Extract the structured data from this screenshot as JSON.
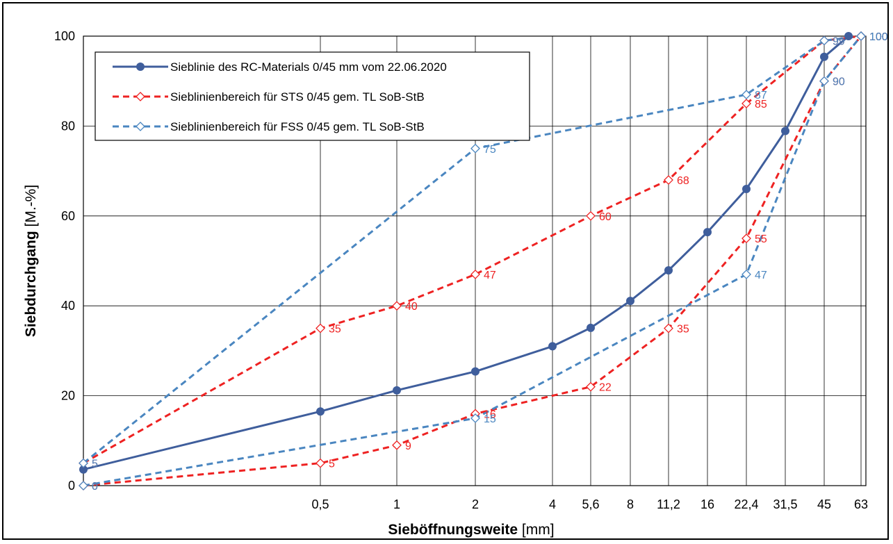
{
  "chart_data": {
    "type": "line",
    "x_tick_labels": [
      "0,5",
      "1",
      "2",
      "4",
      "5,6",
      "8",
      "11,2",
      "16",
      "22,4",
      "31,5",
      "45",
      "63"
    ],
    "y_ticks": [
      "0",
      "20",
      "40",
      "60",
      "80",
      "100"
    ],
    "ylim": [
      0,
      100
    ],
    "grid": true,
    "legend_position": "top-left",
    "xlabel_bold": "Sieböffnungsweite",
    "xlabel_unit": " [mm]",
    "ylabel_bold": "Siebdurchgang",
    "ylabel_unit": " [M.-%]",
    "series": [
      {
        "name": "Sieblinie des RC-Materials 0/45 mm vom 22.06.2020",
        "color": "#3F5E9C",
        "style": "solid",
        "marker": "circle",
        "x": [
          0.063,
          0.5,
          1,
          2,
          4,
          5.6,
          8,
          11.2,
          16,
          22.4,
          31.5,
          45,
          56
        ],
        "y": [
          3.6,
          16.5,
          21.2,
          25.4,
          31.0,
          35.1,
          41.1,
          47.9,
          56.4,
          66.0,
          78.9,
          95.4,
          100
        ]
      },
      {
        "name": "Sieblinienbereich für STS 0/45 gem. TL SoB-StB",
        "color": "#EE2222",
        "style": "dashed",
        "marker": "diamond",
        "upper": {
          "x": [
            0.063,
            0.5,
            1,
            2,
            5.6,
            11.2,
            22.4,
            45,
            63
          ],
          "y": [
            5,
            35,
            40,
            47,
            60,
            68,
            85,
            99,
            100
          ],
          "labels": [
            "5",
            "35",
            "40",
            "47",
            "60",
            "68",
            "85",
            "99",
            "100"
          ]
        },
        "lower": {
          "x": [
            0.063,
            0.5,
            1,
            2,
            5.6,
            11.2,
            22.4,
            45,
            63
          ],
          "y": [
            0,
            5,
            9,
            16,
            22,
            35,
            55,
            90,
            100
          ],
          "labels": [
            "0",
            "5",
            "9",
            "16",
            "22",
            "35",
            "55",
            "90",
            "100"
          ]
        }
      },
      {
        "name": "Sieblinienbereich für FSS 0/45 gem. TL SoB-StB",
        "color": "#4A86C0",
        "style": "dashed",
        "marker": "diamond",
        "upper": {
          "x": [
            0.063,
            2,
            22.4,
            45,
            63
          ],
          "y": [
            5,
            75,
            87,
            99,
            100
          ],
          "labels": [
            "5",
            "75",
            "87",
            "99",
            "100"
          ]
        },
        "lower": {
          "x": [
            0.063,
            2,
            22.4,
            45,
            63
          ],
          "y": [
            0,
            15,
            47,
            90,
            100
          ],
          "labels": [
            "0",
            "15",
            "47",
            "90",
            "100"
          ]
        }
      }
    ]
  }
}
